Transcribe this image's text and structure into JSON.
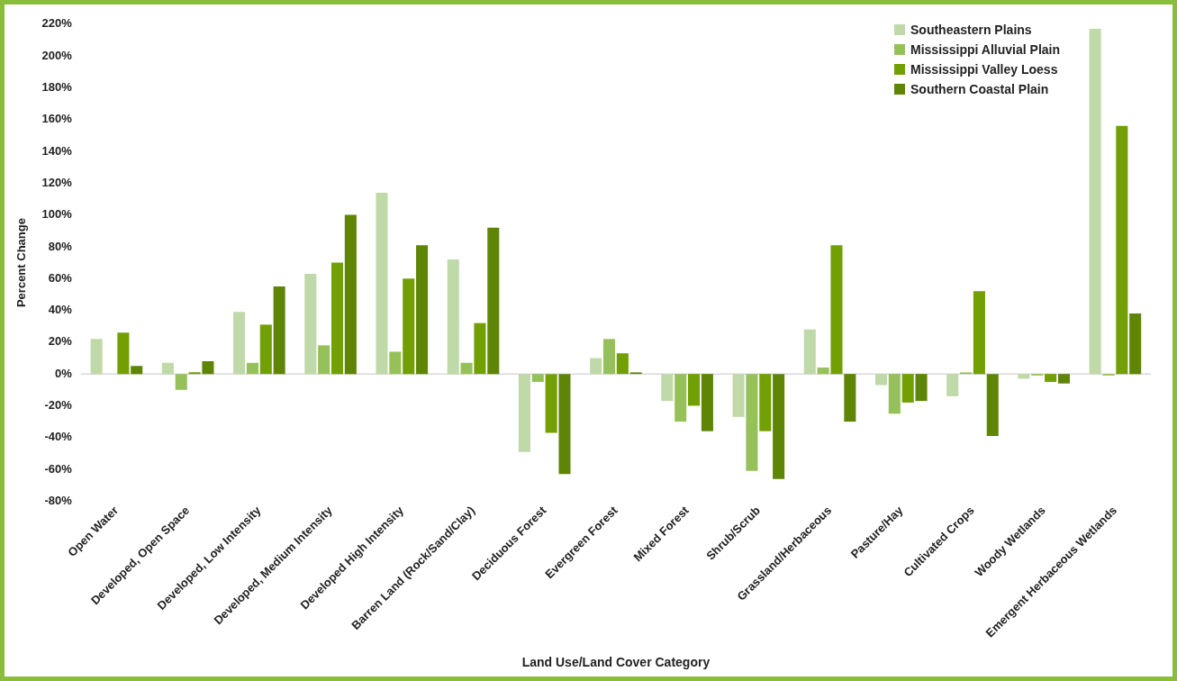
{
  "chart_data": {
    "type": "bar",
    "xlabel": "Land Use/Land Cover Category",
    "ylabel": "Percent Change",
    "categories": [
      "Open Water",
      "Developed, Open Space",
      "Developed, Low Intensity",
      "Developed, Medium Intensity",
      "Developed High Intensity",
      "Barren Land (Rock/Sand/Clay)",
      "Deciduous Forest",
      "Evergreen Forest",
      "Mixed Forest",
      "Shrub/Scrub",
      "Grassland/Herbaceous",
      "Pasture/Hay",
      "Cultivated Crops",
      "Woody Wetlands",
      "Emergent Herbaceous Wetlands"
    ],
    "series": [
      {
        "name": "Southeastern Plains",
        "color": "#c0d9a8",
        "values": [
          22,
          7,
          39,
          63,
          114,
          72,
          -49,
          10,
          -17,
          -27,
          28,
          -7,
          -14,
          -3,
          217
        ]
      },
      {
        "name": "Mississippi Alluvial Plain",
        "color": "#96c15a",
        "values": [
          null,
          -10,
          7,
          18,
          14,
          7,
          -5,
          22,
          -30,
          -61,
          4,
          -25,
          1,
          -1,
          -1
        ]
      },
      {
        "name": "Mississippi Valley Loess",
        "color": "#72a004",
        "values": [
          26,
          1,
          31,
          70,
          60,
          32,
          -37,
          13,
          -20,
          -36,
          81,
          -18,
          52,
          -5,
          156
        ]
      },
      {
        "name": "Southern Coastal Plain",
        "color": "#5f8507",
        "values": [
          5,
          8,
          55,
          100,
          81,
          92,
          -63,
          1,
          -36,
          -66,
          -30,
          -17,
          -39,
          -6,
          38
        ]
      }
    ],
    "ylim": [
      -80,
      220
    ],
    "yticks": [
      {
        "value": -80,
        "label": "-80%"
      },
      {
        "value": -60,
        "label": "-60%"
      },
      {
        "value": -40,
        "label": "-40%"
      },
      {
        "value": -20,
        "label": "-20%"
      },
      {
        "value": 0,
        "label": "0%"
      },
      {
        "value": 20,
        "label": "20%"
      },
      {
        "value": 40,
        "label": "40%"
      },
      {
        "value": 60,
        "label": "60%"
      },
      {
        "value": 80,
        "label": "80%"
      },
      {
        "value": 100,
        "label": "100%"
      },
      {
        "value": 120,
        "label": "120%"
      },
      {
        "value": 140,
        "label": "140%"
      },
      {
        "value": 160,
        "label": "160%"
      },
      {
        "value": 180,
        "label": "180%"
      },
      {
        "value": 200,
        "label": "200%"
      },
      {
        "value": 220,
        "label": "220%"
      }
    ],
    "ref_lines": [
      {
        "axis": "y",
        "value": 0,
        "color": "#d9d9d9"
      }
    ],
    "grid": false,
    "legend": "top right"
  }
}
